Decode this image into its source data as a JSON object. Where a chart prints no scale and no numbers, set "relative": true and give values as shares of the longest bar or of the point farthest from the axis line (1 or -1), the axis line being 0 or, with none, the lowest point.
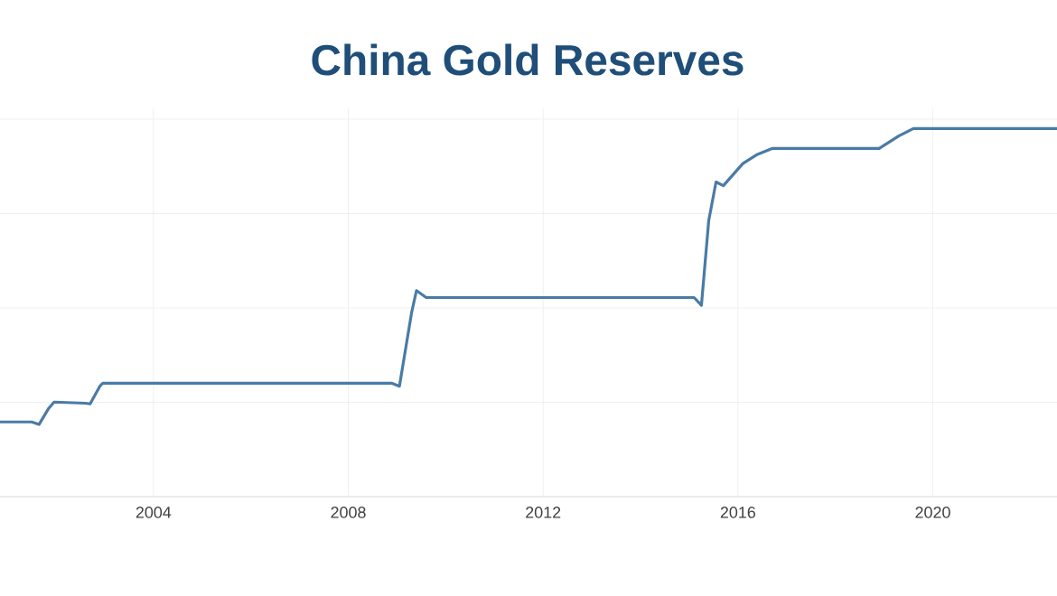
{
  "chart_data": {
    "type": "line",
    "title": "China Gold Reserves",
    "relative": true,
    "color": "#4a7ba6",
    "grid": true,
    "line_style": "solid",
    "x": [
      2000.85,
      2001.5,
      2001.65,
      2001.85,
      2001.96,
      2002.6,
      2002.7,
      2002.9,
      2002.96,
      2008.9,
      2009.05,
      2009.3,
      2009.4,
      2009.6,
      2015.1,
      2015.25,
      2015.4,
      2015.55,
      2015.7,
      2016.1,
      2016.4,
      2016.7,
      2018.9,
      2019.3,
      2019.6,
      2022.55
    ],
    "values": [
      0.203,
      0.203,
      0.196,
      0.24,
      0.257,
      0.254,
      0.252,
      0.3,
      0.308,
      0.308,
      0.3,
      0.5,
      0.56,
      0.541,
      0.541,
      0.52,
      0.75,
      0.855,
      0.845,
      0.905,
      0.93,
      0.946,
      0.946,
      0.98,
      1,
      1
    ],
    "xlim": [
      2000.85,
      2022.55
    ],
    "xticks": [
      2004,
      2008,
      2012,
      2016,
      2020
    ]
  }
}
